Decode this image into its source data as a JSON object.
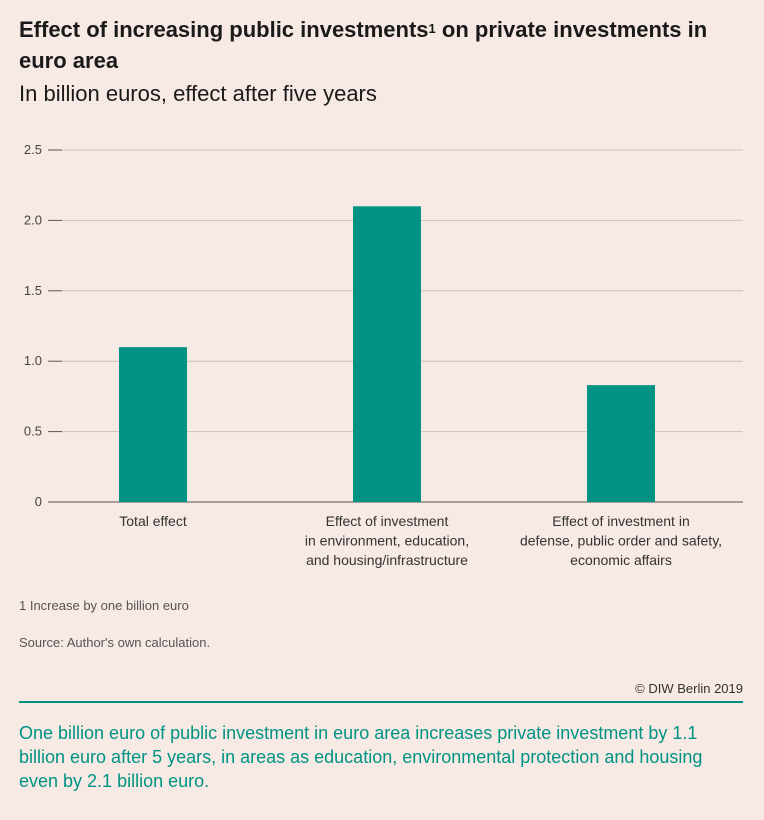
{
  "header": {
    "title_before": "Effect of increasing public investments",
    "title_sup": "1",
    "title_after": " on private investments in euro area",
    "subtitle": "In billion euros, effect after five years"
  },
  "chart_data": {
    "type": "bar",
    "categories": [
      [
        "Total effect"
      ],
      [
        "Effect of investment",
        "in environment, education,",
        "and housing/infrastructure"
      ],
      [
        "Effect of investment in",
        "defense, public order and safety,",
        "economic affairs"
      ]
    ],
    "values": [
      1.1,
      2.1,
      0.83
    ],
    "yticks": [
      "0",
      "0.5",
      "1.0",
      "1.5",
      "2.0",
      "2.5"
    ],
    "ylim": [
      0,
      2.5
    ],
    "grid": true,
    "bar_color": "#009384"
  },
  "footer": {
    "footnote": "1  Increase by one billion euro",
    "source": "Source: Author's own calculation.",
    "copyright": "© DIW Berlin 2019",
    "summary": "One billion euro of public investment in euro area increases private investment by 1.1 billion euro after 5 years, in areas as education, environmental protection and housing even by 2.1 billion euro."
  }
}
